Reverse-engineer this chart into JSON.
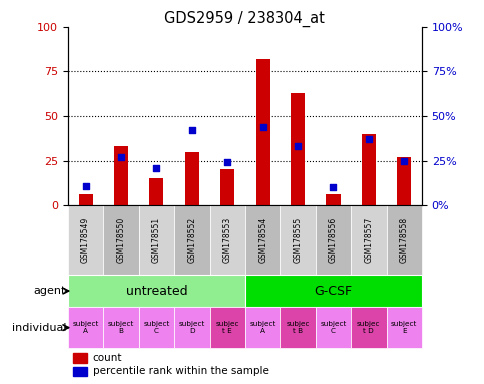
{
  "title": "GDS2959 / 238304_at",
  "samples": [
    "GSM178549",
    "GSM178550",
    "GSM178551",
    "GSM178552",
    "GSM178553",
    "GSM178554",
    "GSM178555",
    "GSM178556",
    "GSM178557",
    "GSM178558"
  ],
  "count_values": [
    6,
    33,
    15,
    30,
    20,
    82,
    63,
    6,
    40,
    27
  ],
  "percentile_values": [
    11,
    27,
    21,
    42,
    24,
    44,
    33,
    10,
    37,
    25
  ],
  "ylim": [
    0,
    100
  ],
  "yticks": [
    0,
    25,
    50,
    75,
    100
  ],
  "bar_color": "#cc0000",
  "percentile_color": "#0000cc",
  "agent_groups": [
    {
      "label": "untreated",
      "start": 0,
      "end": 5,
      "color": "#90ee90"
    },
    {
      "label": "G-CSF",
      "start": 5,
      "end": 10,
      "color": "#00dd00"
    }
  ],
  "individual_labels": [
    "subject\nA",
    "subject\nB",
    "subject\nC",
    "subject\nD",
    "subjec\nt E",
    "subject\nA",
    "subjec\nt B",
    "subject\nC",
    "subjec\nt D",
    "subject\nE"
  ],
  "individual_highlight": [
    false,
    false,
    false,
    false,
    true,
    false,
    true,
    false,
    true,
    false
  ],
  "individual_color_normal": "#ee82ee",
  "individual_color_highlight": "#dd44aa",
  "agent_label": "agent",
  "individual_label": "individual",
  "legend_count": "count",
  "legend_percentile": "percentile rank within the sample",
  "bar_color_left": "#cc0000",
  "percentile_color_right": "#0000cc",
  "sample_cell_color_even": "#d3d3d3",
  "sample_cell_color_odd": "#bbbbbb",
  "grid_color": "black",
  "grid_linestyle": ":"
}
